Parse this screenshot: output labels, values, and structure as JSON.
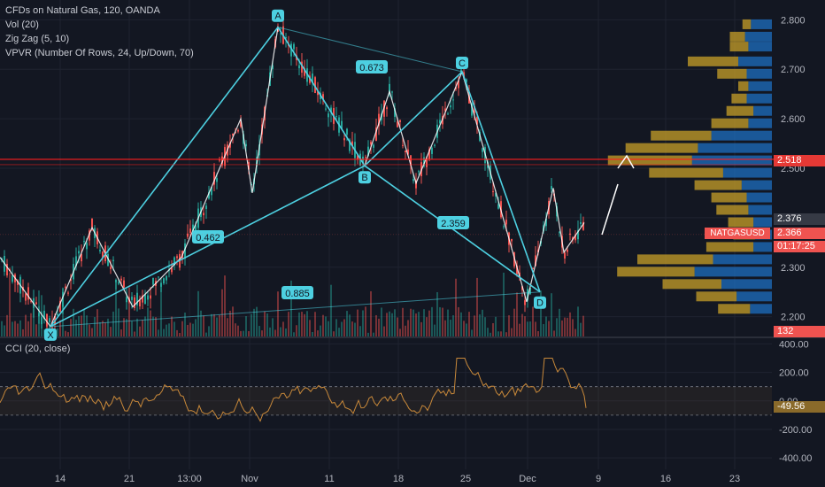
{
  "legend": {
    "title": "CFDs on Natural Gas, 120, OANDA",
    "vol": "Vol (20)",
    "zigzag": "Zig Zag (5, 10)",
    "vpvr": "VPVR (Number Of Rows, 24, Up/Down, 70)",
    "cci": "CCI (20, close)"
  },
  "colors": {
    "background": "#131722",
    "pattern": "#4dd0e1",
    "up_candle": "#26a69a",
    "down_candle": "#ef5350",
    "zigzag": "#ffffff",
    "vp_up": "#1e6fc0",
    "vp_down": "#c8a028",
    "cci_line": "#c9893a",
    "resistance": "#ff1e1e"
  },
  "price_axis": {
    "ticks": [
      "2.800",
      "2.700",
      "2.600",
      "2.500",
      "2.400",
      "2.300",
      "2.200"
    ],
    "labels": {
      "resistance": "2.518",
      "current": "2.376",
      "last": "2.366",
      "symbol": "NATGASUSD",
      "countdown": "01:17:25",
      "volume": "132"
    }
  },
  "cci_axis": {
    "ticks": [
      "400.00",
      "200.00",
      "0.00",
      "-200.00",
      "-400.00"
    ],
    "current": "-49.56"
  },
  "time_axis": [
    "14",
    "21",
    "13:00",
    "Nov",
    "11",
    "18",
    "25",
    "Dec",
    "9",
    "16",
    "23"
  ],
  "chart_data": {
    "type": "line",
    "instrument": "CFDs on Natural Gas, 120, OANDA",
    "ylim": [
      2.16,
      2.84
    ],
    "xabcd": [
      {
        "point": "X",
        "price": 2.18
      },
      {
        "point": "A",
        "price": 2.785
      },
      {
        "point": "B",
        "price": 2.505
      },
      {
        "point": "C",
        "price": 2.695
      },
      {
        "point": "D",
        "price": 2.25
      }
    ],
    "ratios": [
      {
        "label": "0.462",
        "between": [
          "X",
          "B"
        ]
      },
      {
        "label": "0.673",
        "between": [
          "A",
          "C"
        ]
      },
      {
        "label": "2.359",
        "between": [
          "B",
          "D"
        ]
      },
      {
        "label": "0.885",
        "between": [
          "X",
          "D"
        ]
      }
    ],
    "zigzag": [
      2.32,
      2.18,
      2.38,
      2.22,
      2.32,
      2.6,
      2.45,
      2.785,
      2.505,
      2.655,
      2.47,
      2.695,
      2.23,
      2.46,
      2.33,
      2.39
    ],
    "resistance": 2.518,
    "last_price": 2.366,
    "cci": {
      "ylim": [
        -480,
        440
      ],
      "bands": [
        100,
        -100
      ],
      "last": -49.56
    }
  }
}
